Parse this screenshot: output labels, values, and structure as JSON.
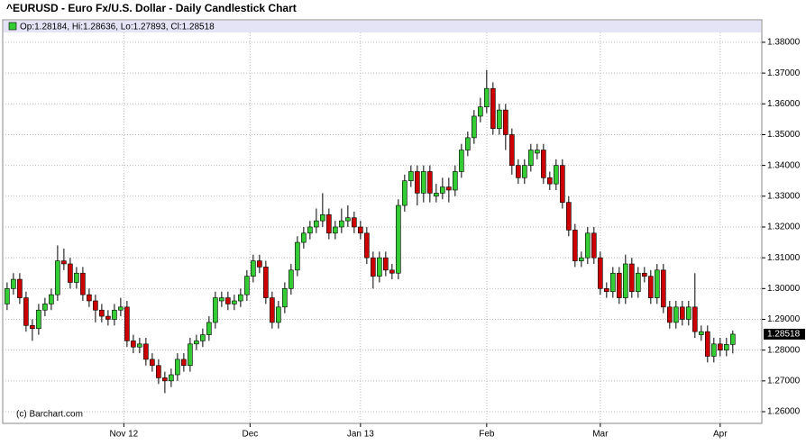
{
  "chart_data": {
    "type": "candlestick",
    "title": "^EURUSD - Euro Fx/U.S. Dollar - Daily Candlestick Chart",
    "legend_label": "Op:1.28184, Hi:1.28636, Lo:1.27893, Cl:1.28518",
    "watermark": "(c) Barchart.com",
    "up_color": "#33cc33",
    "down_color": "#cc0000",
    "grid": true,
    "open": [
      1.295,
      1.3,
      1.303,
      1.297,
      1.288,
      1.287,
      1.293,
      1.295,
      1.298,
      1.309,
      1.308,
      1.302,
      1.305,
      1.298,
      1.296,
      1.293,
      1.291,
      1.29,
      1.293,
      1.294,
      1.283,
      1.281,
      1.282,
      1.277,
      1.275,
      1.271,
      1.27,
      1.272,
      1.277,
      1.275,
      1.282,
      1.283,
      1.285,
      1.289,
      1.296,
      1.297,
      1.295,
      1.296,
      1.298,
      1.304,
      1.309,
      1.307,
      1.297,
      1.289,
      1.294,
      1.3,
      1.306,
      1.315,
      1.318,
      1.32,
      1.322,
      1.324,
      1.318,
      1.32,
      1.322,
      1.323,
      1.32,
      1.318,
      1.31,
      1.304,
      1.31,
      1.306,
      1.305,
      1.327,
      1.335,
      1.338,
      1.331,
      1.338,
      1.33,
      1.331,
      1.333,
      1.332,
      1.338,
      1.345,
      1.349,
      1.356,
      1.359,
      1.365,
      1.352,
      1.358,
      1.35,
      1.34,
      1.336,
      1.34,
      1.344,
      1.345,
      1.336,
      1.334,
      1.34,
      1.328,
      1.319,
      1.309,
      1.31,
      1.318,
      1.31,
      1.3,
      1.299,
      1.305,
      1.297,
      1.308,
      1.299,
      1.305,
      1.304,
      1.297,
      1.306,
      1.294,
      1.289,
      1.294,
      1.29,
      1.294,
      1.285,
      1.286,
      1.278,
      1.282,
      1.28,
      1.28184
    ],
    "high": [
      1.302,
      1.305,
      1.305,
      1.299,
      1.29,
      1.295,
      1.297,
      1.3,
      1.314,
      1.313,
      1.31,
      1.307,
      1.307,
      1.3,
      1.298,
      1.295,
      1.293,
      1.295,
      1.297,
      1.296,
      1.285,
      1.284,
      1.284,
      1.279,
      1.277,
      1.273,
      1.274,
      1.279,
      1.279,
      1.284,
      1.285,
      1.287,
      1.291,
      1.299,
      1.299,
      1.299,
      1.298,
      1.3,
      1.306,
      1.311,
      1.311,
      1.309,
      1.299,
      1.296,
      1.302,
      1.308,
      1.317,
      1.32,
      1.322,
      1.326,
      1.331,
      1.326,
      1.322,
      1.326,
      1.327,
      1.325,
      1.322,
      1.32,
      1.312,
      1.312,
      1.312,
      1.308,
      1.329,
      1.337,
      1.34,
      1.34,
      1.34,
      1.34,
      1.334,
      1.336,
      1.336,
      1.34,
      1.347,
      1.351,
      1.358,
      1.362,
      1.371,
      1.367,
      1.36,
      1.36,
      1.352,
      1.342,
      1.342,
      1.347,
      1.347,
      1.347,
      1.338,
      1.342,
      1.342,
      1.33,
      1.321,
      1.312,
      1.32,
      1.32,
      1.312,
      1.302,
      1.307,
      1.307,
      1.311,
      1.31,
      1.307,
      1.307,
      1.306,
      1.308,
      1.308,
      1.296,
      1.296,
      1.296,
      1.296,
      1.305,
      1.288,
      1.288,
      1.284,
      1.284,
      1.284,
      1.28636
    ],
    "low": [
      1.293,
      1.298,
      1.295,
      1.286,
      1.283,
      1.285,
      1.291,
      1.293,
      1.296,
      1.306,
      1.3,
      1.3,
      1.296,
      1.294,
      1.289,
      1.289,
      1.288,
      1.288,
      1.291,
      1.281,
      1.279,
      1.279,
      1.275,
      1.273,
      1.269,
      1.266,
      1.268,
      1.27,
      1.273,
      1.273,
      1.28,
      1.281,
      1.283,
      1.287,
      1.294,
      1.293,
      1.293,
      1.294,
      1.296,
      1.302,
      1.305,
      1.295,
      1.287,
      1.287,
      1.292,
      1.298,
      1.304,
      1.313,
      1.316,
      1.318,
      1.32,
      1.316,
      1.316,
      1.318,
      1.32,
      1.318,
      1.316,
      1.308,
      1.3,
      1.302,
      1.304,
      1.303,
      1.303,
      1.325,
      1.333,
      1.327,
      1.328,
      1.328,
      1.328,
      1.329,
      1.328,
      1.33,
      1.336,
      1.343,
      1.347,
      1.354,
      1.357,
      1.35,
      1.35,
      1.345,
      1.337,
      1.334,
      1.334,
      1.338,
      1.342,
      1.334,
      1.332,
      1.332,
      1.326,
      1.317,
      1.307,
      1.307,
      1.308,
      1.308,
      1.298,
      1.297,
      1.297,
      1.295,
      1.295,
      1.297,
      1.297,
      1.302,
      1.295,
      1.295,
      1.292,
      1.287,
      1.287,
      1.288,
      1.288,
      1.284,
      1.283,
      1.276,
      1.276,
      1.278,
      1.278,
      1.27893
    ],
    "close": [
      1.3,
      1.303,
      1.297,
      1.288,
      1.287,
      1.293,
      1.295,
      1.298,
      1.309,
      1.308,
      1.302,
      1.305,
      1.298,
      1.296,
      1.293,
      1.291,
      1.29,
      1.293,
      1.294,
      1.283,
      1.281,
      1.282,
      1.277,
      1.275,
      1.271,
      1.27,
      1.272,
      1.277,
      1.275,
      1.282,
      1.283,
      1.285,
      1.289,
      1.297,
      1.297,
      1.295,
      1.296,
      1.298,
      1.304,
      1.309,
      1.307,
      1.297,
      1.289,
      1.294,
      1.3,
      1.306,
      1.315,
      1.318,
      1.32,
      1.322,
      1.324,
      1.318,
      1.32,
      1.322,
      1.323,
      1.32,
      1.318,
      1.31,
      1.304,
      1.31,
      1.306,
      1.305,
      1.327,
      1.335,
      1.338,
      1.331,
      1.338,
      1.331,
      1.331,
      1.333,
      1.332,
      1.338,
      1.345,
      1.349,
      1.356,
      1.359,
      1.365,
      1.352,
      1.358,
      1.35,
      1.34,
      1.336,
      1.34,
      1.345,
      1.345,
      1.336,
      1.334,
      1.34,
      1.328,
      1.319,
      1.309,
      1.31,
      1.318,
      1.31,
      1.3,
      1.299,
      1.305,
      1.297,
      1.308,
      1.299,
      1.305,
      1.304,
      1.297,
      1.306,
      1.294,
      1.289,
      1.294,
      1.29,
      1.294,
      1.286,
      1.286,
      1.278,
      1.282,
      1.28,
      1.28184,
      1.28518
    ],
    "xlim": [
      -0.7,
      119.6
    ],
    "xticks": [
      {
        "value": 18.5,
        "label": "Nov 12"
      },
      {
        "value": 38.5,
        "label": "Dec"
      },
      {
        "value": 56,
        "label": "Jan 13"
      },
      {
        "value": 76,
        "label": "Feb"
      },
      {
        "value": 94,
        "label": "Mar"
      },
      {
        "value": 113,
        "label": "Apr"
      }
    ],
    "ylim": [
      1.2562,
      1.3873
    ],
    "yticks": [
      {
        "value": 1.26,
        "label": "1.26000"
      },
      {
        "value": 1.27,
        "label": "1.27000"
      },
      {
        "value": 1.28,
        "label": "1.28000"
      },
      {
        "value": 1.29,
        "label": "1.29000"
      },
      {
        "value": 1.3,
        "label": "1.30000"
      },
      {
        "value": 1.31,
        "label": "1.31000"
      },
      {
        "value": 1.32,
        "label": "1.32000"
      },
      {
        "value": 1.33,
        "label": "1.33000"
      },
      {
        "value": 1.34,
        "label": "1.34000"
      },
      {
        "value": 1.35,
        "label": "1.35000"
      },
      {
        "value": 1.36,
        "label": "1.36000"
      },
      {
        "value": 1.37,
        "label": "1.37000"
      },
      {
        "value": 1.38,
        "label": "1.38000"
      }
    ]
  }
}
